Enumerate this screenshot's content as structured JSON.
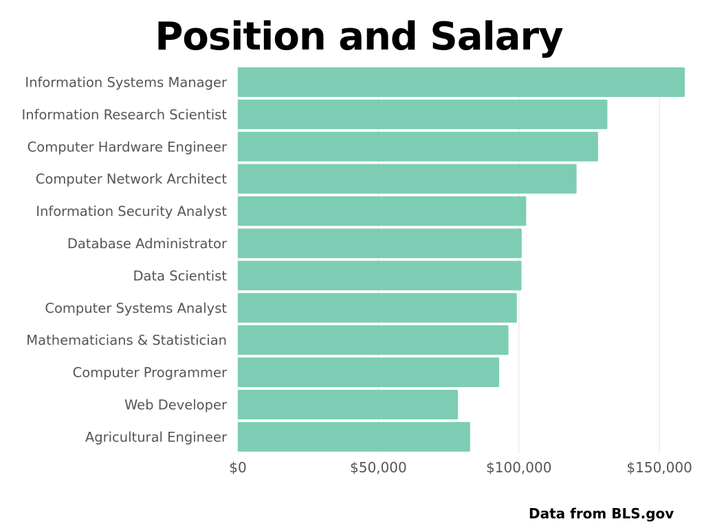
{
  "chart_data": {
    "type": "bar",
    "orientation": "horizontal",
    "title": "Position and Salary",
    "source": "Data from BLS.gov",
    "categories": [
      "Information Systems Manager",
      "Information Research Scientist",
      "Computer Hardware Engineer",
      "Computer Network Architect",
      "Information Security Analyst",
      "Database Administrator",
      "Data Scientist",
      "Computer Systems Analyst",
      "Mathematicians & Statistician",
      "Computer Programmer",
      "Web Developer",
      "Agricultural Engineer"
    ],
    "values": [
      159010,
      131490,
      128170,
      120520,
      102600,
      101000,
      100910,
      99270,
      96280,
      93000,
      78300,
      82640
    ],
    "xlim": [
      0,
      160000
    ],
    "ticks": [
      0,
      50000,
      100000,
      150000
    ],
    "tick_labels": [
      "$0",
      "$50,000",
      "$100,000",
      "$150,000"
    ],
    "grid": true,
    "bar_color": "#7dcdb4",
    "grid_color": "#e2e2e2",
    "legend": "none"
  }
}
